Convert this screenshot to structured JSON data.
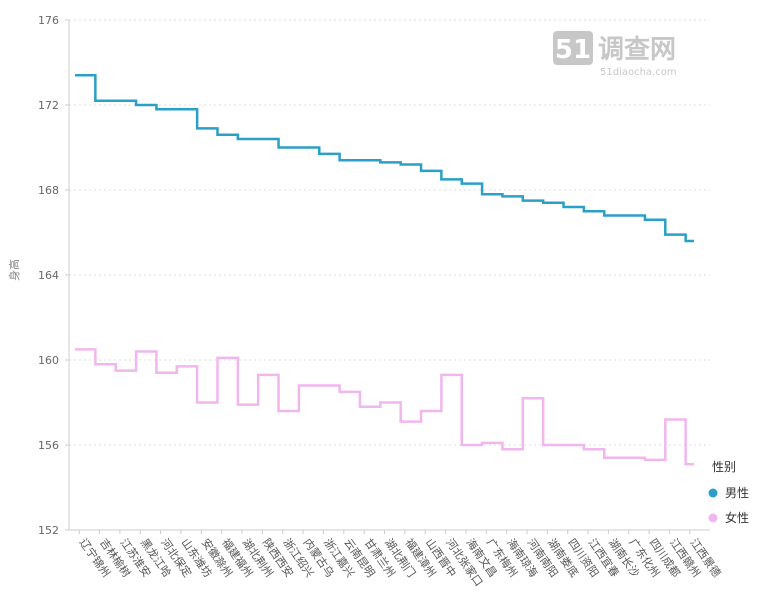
{
  "watermark": {
    "logo_number": "51",
    "logo_text": "调查网",
    "logo_url_text": "51diaocha.com"
  },
  "legend": {
    "title": "性别",
    "items": [
      {
        "label": "男性",
        "color": "#2a9fc7"
      },
      {
        "label": "女性",
        "color": "#f2b6ef"
      }
    ]
  },
  "chart_data": {
    "type": "line",
    "step": true,
    "ylabel": "身高",
    "ylim": [
      152,
      176
    ],
    "yticks": [
      152,
      156,
      160,
      164,
      168,
      172,
      176
    ],
    "grid": true,
    "categories": [
      "辽宁锦州",
      "吉林榆树",
      "江苏淮安",
      "黑龙江哈",
      "河北保定",
      "山东潍坊",
      "安徽滁州",
      "福建福州",
      "湖北荆州",
      "陕西西安",
      "浙江绍兴",
      "内蒙古乌",
      "浙江嘉兴",
      "云南昆明",
      "甘肃兰州",
      "湖北荆门",
      "福建漳州",
      "山西晋中",
      "河北张家口",
      "海南文昌",
      "广东梅州",
      "海南琼海",
      "河南南阳",
      "湖南娄底",
      "四川资阳",
      "江西宜春",
      "湖南长沙",
      "广东化州",
      "四川成都",
      "江西赣州",
      "江西景德"
    ],
    "series": [
      {
        "name": "男性",
        "color": "#2a9fc7",
        "values": [
          173.4,
          172.2,
          172.2,
          172.0,
          171.8,
          171.8,
          170.9,
          170.6,
          170.4,
          170.4,
          170.0,
          170.0,
          169.7,
          169.4,
          169.4,
          169.3,
          169.2,
          168.9,
          168.5,
          168.3,
          167.8,
          167.7,
          167.5,
          167.4,
          167.2,
          167.0,
          166.8,
          166.8,
          166.6,
          165.9,
          165.6
        ]
      },
      {
        "name": "女性",
        "color": "#f2b6ef",
        "values": [
          160.5,
          159.8,
          159.5,
          160.4,
          159.4,
          159.7,
          158.0,
          160.1,
          157.9,
          159.3,
          157.6,
          158.8,
          158.8,
          158.5,
          157.8,
          158.0,
          157.1,
          157.6,
          159.3,
          156.0,
          156.1,
          155.8,
          158.2,
          156.0,
          156.0,
          155.8,
          155.4,
          155.4,
          155.3,
          157.2,
          155.1
        ]
      }
    ]
  }
}
